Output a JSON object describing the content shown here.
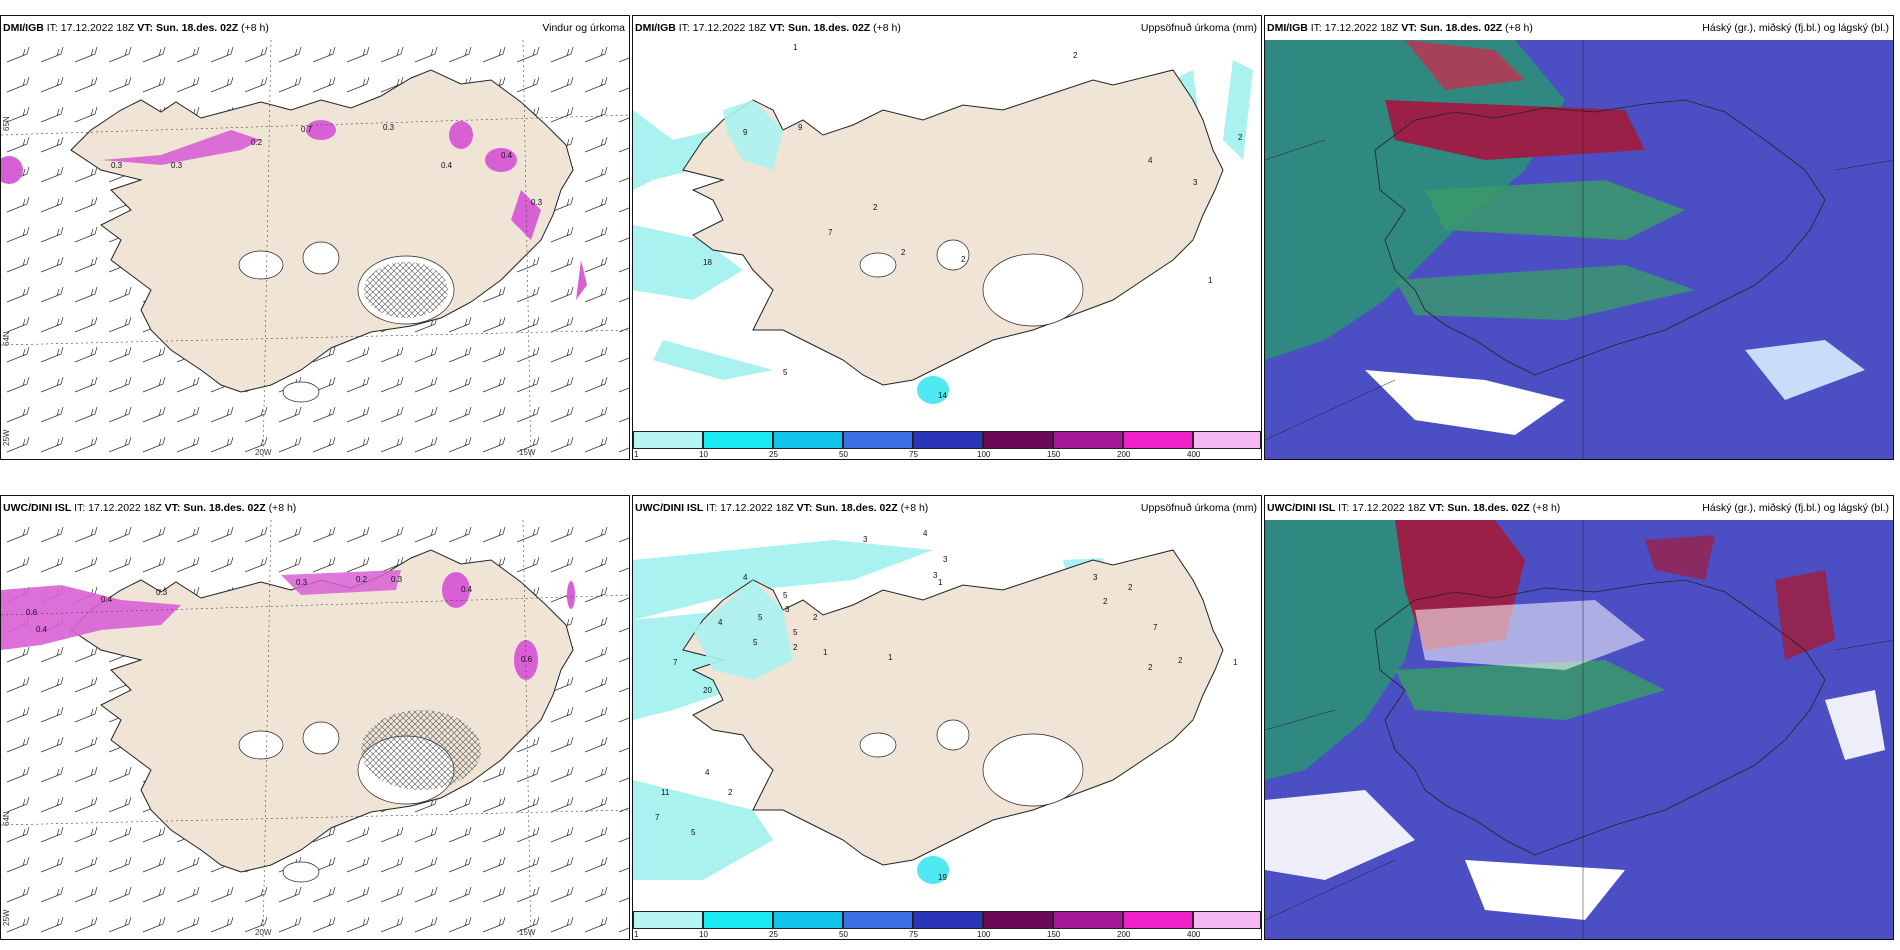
{
  "colors": {
    "land": "#efe4d6",
    "precip_light": "#a9f2ef",
    "precip_cyan": "#22e4ee",
    "snow_hatch": "#555555",
    "wind_precip": "#d860d4",
    "cloud_low": "#4b4fc3",
    "cloud_mid": "#2e8f7a",
    "cloud_high": "#9a2048"
  },
  "rows": [
    {
      "model": "DMI/IGB",
      "init": "IT: 17.12.2022 18Z",
      "valid_label": "VT:",
      "valid_time": "Sun. 18.des. 02Z",
      "lead": "(+8 h)",
      "panels": {
        "wind": {
          "title": "Vindur og úrkoma",
          "values": [
            "0.3",
            "0.2",
            "0.7",
            "0.3",
            "0.4",
            "0.4",
            "0.3",
            "0.3"
          ]
        },
        "precip": {
          "title": "Uppsöfnuð úrkoma (mm)",
          "values": [
            "1",
            "9",
            "9",
            "7",
            "2",
            "18",
            "2",
            "2",
            "5",
            "14",
            "2",
            "4",
            "3",
            "2",
            "1"
          ]
        },
        "cloud": {
          "title": "Háský (gr.), miðský (fj.bl.) og lágský (bl.)"
        }
      }
    },
    {
      "model": "UWC/DINI ISL",
      "init": "IT: 17.12.2022 18Z",
      "valid_label": "VT:",
      "valid_time": "Sun. 18.des. 02Z",
      "lead": "(+8 h)",
      "panels": {
        "wind": {
          "title": "Vindur og úrkoma",
          "values": [
            "0.6",
            "0.4",
            "0.3",
            "0.3",
            "0.4",
            "0.3",
            "0.2",
            "0.4",
            "0.6"
          ]
        },
        "precip": {
          "title": "Uppsöfnuð úrkoma (mm)",
          "values": [
            "3",
            "4",
            "3",
            "4",
            "5",
            "5",
            "5",
            "2",
            "4",
            "3",
            "5",
            "7",
            "20",
            "4",
            "2",
            "2",
            "11",
            "7",
            "5",
            "1",
            "1",
            "1",
            "3",
            "3",
            "2",
            "2",
            "7",
            "2",
            "2",
            "1",
            "19"
          ]
        },
        "cloud": {
          "title": "Háský (gr.), miðský (fj.bl.) og lágský (bl.)"
        }
      }
    }
  ],
  "axis_labels": {
    "lon_20": "20W",
    "lon_15": "15W",
    "lat_65": "65N",
    "lat_64": "64N",
    "lon_25": "25W"
  },
  "colorbar": {
    "ticks": [
      "1",
      "10",
      "25",
      "50",
      "75",
      "100",
      "150",
      "200",
      "400"
    ],
    "colors": [
      "#b6f4f2",
      "#19eaf3",
      "#11c2ec",
      "#3b6fe6",
      "#2a35b8",
      "#6a0a59",
      "#a61698",
      "#f01fc8",
      "#f3b7f1"
    ]
  }
}
